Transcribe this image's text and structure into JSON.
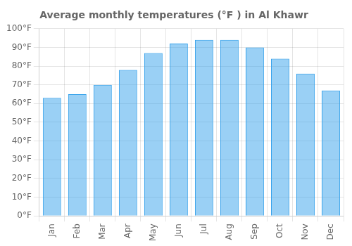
{
  "chart_data": {
    "type": "bar",
    "title": "Average monthly temperatures (°F ) in Al Khawr",
    "categories": [
      "Jan",
      "Feb",
      "Mar",
      "Apr",
      "May",
      "Jun",
      "Jul",
      "Aug",
      "Sep",
      "Oct",
      "Nov",
      "Dec"
    ],
    "values": [
      63,
      65,
      70,
      78,
      87,
      92,
      94,
      94,
      90,
      84,
      76,
      67
    ],
    "ylim": [
      0,
      100
    ],
    "yticks": [
      {
        "value": 0,
        "label": "0°F"
      },
      {
        "value": 10,
        "label": "10°F"
      },
      {
        "value": 20,
        "label": "20°F"
      },
      {
        "value": 30,
        "label": "30°F"
      },
      {
        "value": 40,
        "label": "40°F"
      },
      {
        "value": 50,
        "label": "50°F"
      },
      {
        "value": 60,
        "label": "60°F"
      },
      {
        "value": 70,
        "label": "70°F"
      },
      {
        "value": 80,
        "label": "80°F"
      },
      {
        "value": 90,
        "label": "90°F"
      },
      {
        "value": 100,
        "label": "100°F"
      }
    ],
    "grid": true
  }
}
